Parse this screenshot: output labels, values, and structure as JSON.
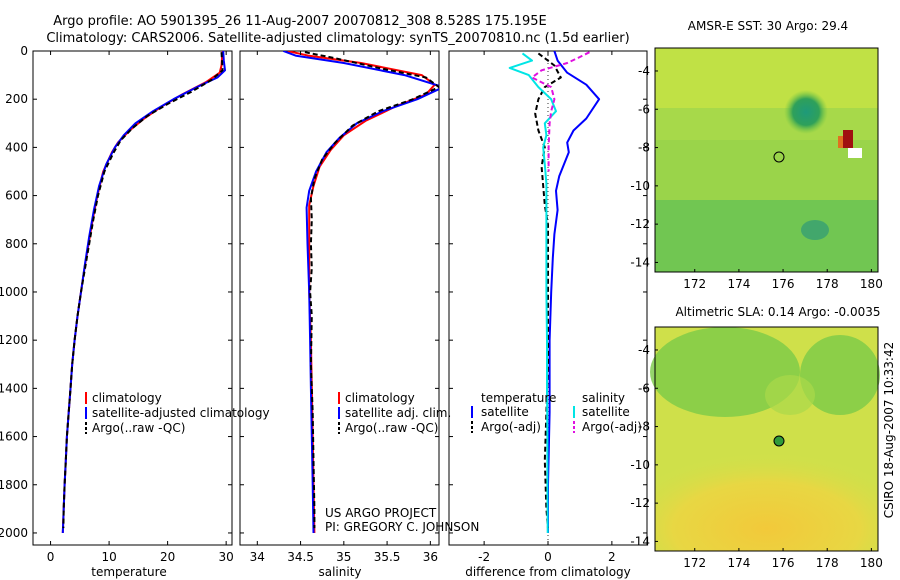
{
  "header": {
    "line1": "Argo profile: AO 5901395_26 11-Aug-2007 20070812_308 8.528S 175.195E",
    "line2": "Climatology: CARS2006. Satellite-adjusted climatology: synTS_20070810.nc (1.5d earlier)"
  },
  "footer": {
    "project": "US ARGO PROJECT",
    "pi": "PI: GREGORY C. JOHNSON",
    "side_stamp": "CSIRO 18-Aug-2007 10:33:42"
  },
  "colors": {
    "climatology": "#ff0000",
    "satellite": "#0000ff",
    "argo": "#000000",
    "sat_salinity": "#00e5e5",
    "argo_salinity_diff": "#e010e0"
  },
  "chart_data": [
    {
      "type": "line",
      "title": "",
      "xlabel": "temperature",
      "ylabel": "",
      "xlim": [
        -3,
        31
      ],
      "ylim": [
        2050,
        0
      ],
      "xticks": [
        "0",
        "10",
        "20",
        "30"
      ],
      "yticks": [
        "0",
        "200",
        "400",
        "600",
        "800",
        "1000",
        "1200",
        "1400",
        "1600",
        "1800",
        "2000"
      ],
      "legend": [
        "climatology",
        "satellite-adjusted climatology",
        "Argo(..raw -QC)"
      ],
      "series": [
        {
          "name": "climatology",
          "color": "#ff0000",
          "dash": "",
          "points": [
            [
              29.4,
              0
            ],
            [
              29.3,
              30
            ],
            [
              29.2,
              60
            ],
            [
              28.9,
              90
            ],
            [
              26.5,
              130
            ],
            [
              22.5,
              180
            ],
            [
              19,
              230
            ],
            [
              16,
              280
            ],
            [
              13.5,
              330
            ],
            [
              11.5,
              380
            ],
            [
              10.5,
              420
            ],
            [
              9,
              500
            ],
            [
              8,
              600
            ],
            [
              7.2,
              700
            ],
            [
              6.5,
              800
            ],
            [
              5.8,
              900
            ],
            [
              5.2,
              1000
            ],
            [
              4.6,
              1100
            ],
            [
              4.1,
              1200
            ],
            [
              3.7,
              1300
            ],
            [
              3.4,
              1400
            ],
            [
              3.1,
              1500
            ],
            [
              2.8,
              1600
            ],
            [
              2.6,
              1700
            ],
            [
              2.4,
              1800
            ],
            [
              2.25,
              1900
            ],
            [
              2.1,
              2000
            ]
          ]
        },
        {
          "name": "satellite-adjusted climatology",
          "color": "#0000ff",
          "dash": "",
          "points": [
            [
              29.5,
              0
            ],
            [
              29.6,
              40
            ],
            [
              29.8,
              80
            ],
            [
              28.5,
              110
            ],
            [
              25,
              150
            ],
            [
              21,
              200
            ],
            [
              17.5,
              250
            ],
            [
              14.5,
              300
            ],
            [
              12.5,
              350
            ],
            [
              11,
              400
            ],
            [
              9.5,
              470
            ],
            [
              8.3,
              560
            ],
            [
              7.4,
              660
            ],
            [
              6.6,
              770
            ],
            [
              5.9,
              880
            ],
            [
              5.2,
              1000
            ],
            [
              4.6,
              1100
            ],
            [
              4.1,
              1200
            ],
            [
              3.7,
              1300
            ],
            [
              3.4,
              1400
            ],
            [
              3.1,
              1500
            ],
            [
              2.8,
              1600
            ],
            [
              2.6,
              1700
            ],
            [
              2.4,
              1800
            ],
            [
              2.25,
              1900
            ],
            [
              2.1,
              2000
            ]
          ]
        },
        {
          "name": "Argo(..raw -QC)",
          "color": "#000000",
          "dash": "5,3",
          "points": [
            [
              29.2,
              5
            ],
            [
              29.3,
              40
            ],
            [
              29.4,
              80
            ],
            [
              27.5,
              120
            ],
            [
              24,
              170
            ],
            [
              20,
              220
            ],
            [
              16.5,
              270
            ],
            [
              14,
              320
            ],
            [
              12,
              370
            ],
            [
              10.8,
              420
            ],
            [
              9.2,
              500
            ],
            [
              8.1,
              600
            ],
            [
              7.3,
              700
            ],
            [
              6.6,
              800
            ],
            [
              5.9,
              900
            ],
            [
              5.2,
              1000
            ],
            [
              4.6,
              1100
            ],
            [
              4.1,
              1200
            ],
            [
              3.7,
              1300
            ],
            [
              3.4,
              1400
            ],
            [
              3.1,
              1500
            ],
            [
              2.8,
              1600
            ],
            [
              2.6,
              1700
            ],
            [
              2.4,
              1800
            ],
            [
              2.25,
              1900
            ],
            [
              2.2,
              1980
            ]
          ]
        }
      ]
    },
    {
      "type": "line",
      "title": "",
      "xlabel": "salinity",
      "ylabel": "",
      "xlim": [
        33.8,
        36.1
      ],
      "ylim": [
        2050,
        0
      ],
      "xticks": [
        "34",
        "34.5",
        "35",
        "35.5",
        "36"
      ],
      "yticks": [],
      "legend": [
        "climatology",
        "satellite adj. clim.",
        "Argo(..raw -QC)"
      ],
      "series": [
        {
          "name": "climatology",
          "color": "#ff0000",
          "dash": "",
          "points": [
            [
              34.35,
              0
            ],
            [
              34.6,
              20
            ],
            [
              35.2,
              50
            ],
            [
              35.9,
              100
            ],
            [
              36.05,
              140
            ],
            [
              35.95,
              180
            ],
            [
              35.6,
              230
            ],
            [
              35.25,
              290
            ],
            [
              35.0,
              350
            ],
            [
              34.85,
              410
            ],
            [
              34.72,
              480
            ],
            [
              34.65,
              560
            ],
            [
              34.6,
              640
            ],
            [
              34.6,
              800
            ],
            [
              34.6,
              1000
            ],
            [
              34.62,
              1200
            ],
            [
              34.63,
              1400
            ],
            [
              34.64,
              1600
            ],
            [
              34.65,
              1800
            ],
            [
              34.66,
              2000
            ]
          ]
        },
        {
          "name": "satellite adj. clim.",
          "color": "#0000ff",
          "dash": "",
          "points": [
            [
              34.3,
              0
            ],
            [
              34.45,
              20
            ],
            [
              35.0,
              50
            ],
            [
              35.7,
              100
            ],
            [
              36.15,
              150
            ],
            [
              35.85,
              200
            ],
            [
              35.45,
              250
            ],
            [
              35.15,
              300
            ],
            [
              34.95,
              360
            ],
            [
              34.8,
              420
            ],
            [
              34.68,
              500
            ],
            [
              34.6,
              580
            ],
            [
              34.57,
              650
            ],
            [
              34.58,
              800
            ],
            [
              34.6,
              1000
            ],
            [
              34.61,
              1200
            ],
            [
              34.62,
              1400
            ],
            [
              34.63,
              1600
            ],
            [
              34.64,
              1800
            ],
            [
              34.65,
              2000
            ]
          ]
        },
        {
          "name": "Argo(..raw -QC)",
          "color": "#000000",
          "dash": "5,3",
          "points": [
            [
              34.55,
              5
            ],
            [
              34.9,
              30
            ],
            [
              35.4,
              70
            ],
            [
              35.95,
              110
            ],
            [
              36.1,
              150
            ],
            [
              35.8,
              200
            ],
            [
              35.4,
              250
            ],
            [
              35.1,
              310
            ],
            [
              34.9,
              380
            ],
            [
              34.75,
              450
            ],
            [
              34.66,
              530
            ],
            [
              34.62,
              610
            ],
            [
              34.63,
              700
            ],
            [
              34.62,
              800
            ],
            [
              34.63,
              900
            ],
            [
              34.61,
              1000
            ],
            [
              34.63,
              1100
            ],
            [
              34.62,
              1300
            ],
            [
              34.64,
              1500
            ],
            [
              34.65,
              1700
            ],
            [
              34.66,
              1900
            ],
            [
              34.66,
              1980
            ]
          ]
        }
      ]
    },
    {
      "type": "line",
      "title": "",
      "xlabel": "difference from climatology",
      "ylabel": "",
      "xlim": [
        -3.1,
        3.1
      ],
      "ylim": [
        2050,
        0
      ],
      "xticks": [
        "-2",
        "0",
        "2"
      ],
      "yticks": [],
      "legend": [
        "temperature",
        "satellite",
        "Argo(-adj)",
        "salinity",
        "satellite",
        "Argo(-adj)"
      ],
      "series": [
        {
          "name": "temperature satellite",
          "color": "#0000ff",
          "dash": "",
          "points": [
            [
              0.2,
              0
            ],
            [
              0.3,
              40
            ],
            [
              0.6,
              90
            ],
            [
              1.2,
              140
            ],
            [
              1.6,
              200
            ],
            [
              1.2,
              280
            ],
            [
              0.8,
              330
            ],
            [
              0.6,
              380
            ],
            [
              0.65,
              420
            ],
            [
              0.5,
              470
            ],
            [
              0.35,
              520
            ],
            [
              0.25,
              580
            ],
            [
              0.3,
              660
            ],
            [
              0.2,
              760
            ],
            [
              0.15,
              860
            ],
            [
              0.1,
              1000
            ],
            [
              0.05,
              1200
            ],
            [
              0.05,
              1500
            ],
            [
              0.0,
              1800
            ],
            [
              0.0,
              2000
            ]
          ]
        },
        {
          "name": "temperature Argo(-adj)",
          "color": "#000000",
          "dash": "5,3",
          "points": [
            [
              -0.3,
              10
            ],
            [
              0.2,
              60
            ],
            [
              0.4,
              110
            ],
            [
              -0.1,
              150
            ],
            [
              -0.3,
              200
            ],
            [
              -0.4,
              260
            ],
            [
              -0.3,
              330
            ],
            [
              -0.1,
              400
            ],
            [
              -0.2,
              480
            ],
            [
              -0.15,
              560
            ],
            [
              -0.1,
              640
            ],
            [
              0.0,
              720
            ],
            [
              0.0,
              900
            ],
            [
              0.0,
              1100
            ],
            [
              0.0,
              1300
            ],
            [
              -0.05,
              1500
            ],
            [
              -0.1,
              1700
            ],
            [
              -0.05,
              1900
            ],
            [
              0.0,
              1980
            ]
          ]
        },
        {
          "name": "salinity satellite",
          "color": "#00e5e5",
          "dash": "",
          "points": [
            [
              -0.8,
              10
            ],
            [
              -0.5,
              40
            ],
            [
              -1.2,
              70
            ],
            [
              -0.6,
              100
            ],
            [
              -0.3,
              150
            ],
            [
              0.1,
              200
            ],
            [
              0.25,
              250
            ],
            [
              -0.1,
              300
            ],
            [
              -0.05,
              350
            ],
            [
              -0.15,
              400
            ],
            [
              -0.1,
              470
            ],
            [
              -0.05,
              550
            ],
            [
              -0.05,
              700
            ],
            [
              -0.05,
              900
            ],
            [
              -0.05,
              1000
            ],
            [
              -0.03,
              1200
            ],
            [
              -0.03,
              1400
            ],
            [
              -0.02,
              1600
            ],
            [
              -0.02,
              1800
            ],
            [
              -0.01,
              2000
            ]
          ]
        },
        {
          "name": "salinity Argo(-adj)",
          "color": "#e010e0",
          "dash": "5,3",
          "points": [
            [
              1.3,
              5
            ],
            [
              1.0,
              25
            ],
            [
              0.6,
              50
            ],
            [
              -0.2,
              80
            ],
            [
              -0.5,
              110
            ],
            [
              0.1,
              150
            ],
            [
              0.2,
              200
            ],
            [
              0.1,
              250
            ],
            [
              0.05,
              300
            ],
            [
              0.02,
              400
            ],
            [
              0.02,
              500
            ]
          ]
        }
      ]
    }
  ],
  "maps": [
    {
      "title": "AMSR-E SST: 30 Argo: 29.4",
      "xticks": [
        "172",
        "174",
        "176",
        "178",
        "180"
      ],
      "yticks": [
        "-4",
        "-6",
        "-8",
        "-10",
        "-12",
        "-14"
      ],
      "xlim": [
        170.2,
        180.3
      ],
      "ylim": [
        -14.5,
        -2.8
      ],
      "profile": {
        "lon": 175.195,
        "lat": -8.528
      }
    },
    {
      "title": "Altimetric SLA: 0.14 Argo: -0.0035",
      "xticks": [
        "172",
        "174",
        "176",
        "178",
        "180"
      ],
      "yticks": [
        "-4",
        "-6",
        "-8",
        "-10",
        "-12",
        "-14"
      ],
      "xlim": [
        170.2,
        180.3
      ],
      "ylim": [
        -14.5,
        -2.8
      ],
      "profile": {
        "lon": 175.195,
        "lat": -8.528
      }
    }
  ]
}
